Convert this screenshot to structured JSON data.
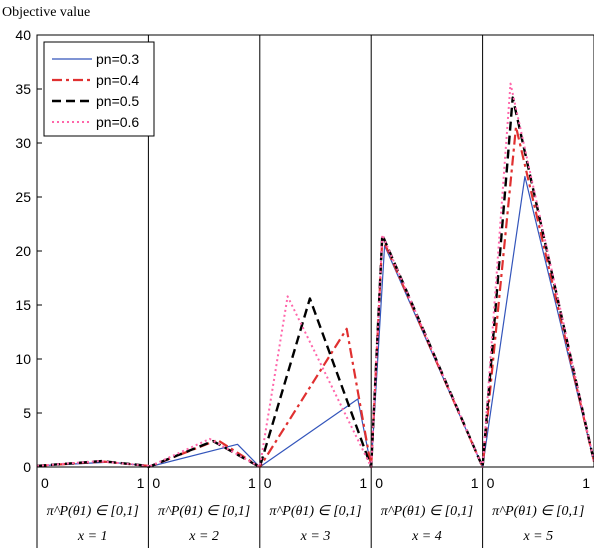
{
  "chart_data": {
    "type": "line",
    "ylabel": "Objective value",
    "ylim": [
      0,
      40
    ],
    "yticks": [
      0,
      5,
      10,
      15,
      20,
      25,
      30,
      35,
      40
    ],
    "panel_xlim": [
      0,
      1
    ],
    "panel_xticks": [
      "0",
      "1"
    ],
    "panel_xlabel": "π^P(θ1) ∈ [0,1]",
    "panels": [
      {
        "label": "x = 1"
      },
      {
        "label": "x = 2"
      },
      {
        "label": "x = 3"
      },
      {
        "label": "x = 4"
      },
      {
        "label": "x = 5"
      }
    ],
    "legend_position": "top-left",
    "series": [
      {
        "name": "pn=0.3",
        "color": "#3355bb",
        "dash": "solid",
        "points": [
          [
            0,
            0.1
          ],
          [
            0.65,
            0.45
          ],
          [
            1,
            0.1
          ],
          [
            1,
            0
          ],
          [
            1.8,
            2.1
          ],
          [
            2,
            0
          ],
          [
            2.88,
            6.3
          ],
          [
            3,
            0
          ],
          [
            3.12,
            20.5
          ],
          [
            4,
            0
          ],
          [
            4.38,
            26.9
          ],
          [
            5,
            0.5
          ]
        ]
      },
      {
        "name": "pn=0.4",
        "color": "#e03030",
        "dash": "dashdot",
        "points": [
          [
            0,
            0.1
          ],
          [
            0.6,
            0.5
          ],
          [
            1,
            0.1
          ],
          [
            1,
            0
          ],
          [
            1.62,
            2.5
          ],
          [
            2,
            0
          ],
          [
            2.78,
            12.8
          ],
          [
            3,
            0
          ],
          [
            3.1,
            21.2
          ],
          [
            4,
            0
          ],
          [
            4.3,
            31.5
          ],
          [
            5,
            0.5
          ]
        ]
      },
      {
        "name": "pn=0.5",
        "color": "#000000",
        "dash": "dash",
        "points": [
          [
            0,
            0.1
          ],
          [
            0.58,
            0.55
          ],
          [
            1,
            0.1
          ],
          [
            1,
            0
          ],
          [
            1.58,
            2.4
          ],
          [
            2,
            0
          ],
          [
            2.45,
            15.6
          ],
          [
            3,
            0
          ],
          [
            3.1,
            21.5
          ],
          [
            4,
            0
          ],
          [
            4.27,
            34.2
          ],
          [
            5,
            0.5
          ]
        ]
      },
      {
        "name": "pn=0.6",
        "color": "#ff66aa",
        "dash": "dot",
        "points": [
          [
            0,
            0.1
          ],
          [
            0.55,
            0.55
          ],
          [
            1,
            0.1
          ],
          [
            1,
            0
          ],
          [
            1.55,
            2.6
          ],
          [
            2,
            0
          ],
          [
            2.25,
            15.8
          ],
          [
            3,
            0
          ],
          [
            3.1,
            21.5
          ],
          [
            4,
            0
          ],
          [
            4.25,
            35.5
          ],
          [
            5,
            0.5
          ]
        ]
      }
    ]
  }
}
